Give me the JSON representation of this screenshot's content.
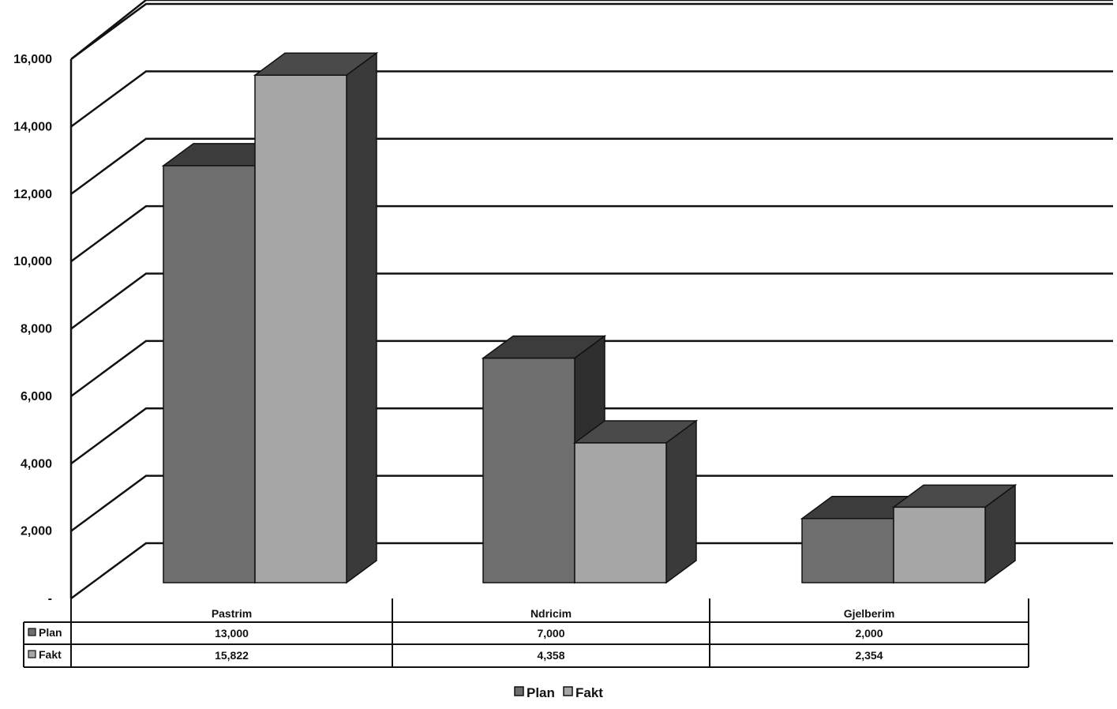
{
  "chart_data": {
    "type": "bar",
    "title": "",
    "xlabel": "",
    "ylabel": "",
    "categories": [
      "Pastrim",
      "Ndricim",
      "Gjelberim"
    ],
    "series": [
      {
        "name": "Plan",
        "values": [
          13000,
          7000,
          2000
        ],
        "labels": [
          "13,000",
          "7,000",
          "2,000"
        ]
      },
      {
        "name": "Fakt",
        "values": [
          15822,
          4358,
          2354
        ],
        "labels": [
          "15,822",
          "4,358",
          "2,354"
        ]
      }
    ],
    "ylim": [
      0,
      16000
    ],
    "y_ticks": [
      0,
      2000,
      4000,
      6000,
      8000,
      10000,
      12000,
      14000,
      16000
    ],
    "y_tick_labels": [
      "-",
      "2,000",
      "4,000",
      "6,000",
      "8,000",
      "10,000",
      "12,000",
      "14,000",
      "16,000"
    ],
    "grid": true,
    "three_d": true,
    "data_table": true,
    "legend": {
      "placement": "bottom",
      "items": [
        "Plan",
        "Fakt"
      ]
    },
    "colors": {
      "Plan": {
        "front": "#6e6e6e",
        "top": "#3c3c3c",
        "side": "#2f2f2f"
      },
      "Fakt": {
        "front": "#a6a6a6",
        "top": "#4a4a4a",
        "side": "#3a3a3a"
      }
    }
  }
}
